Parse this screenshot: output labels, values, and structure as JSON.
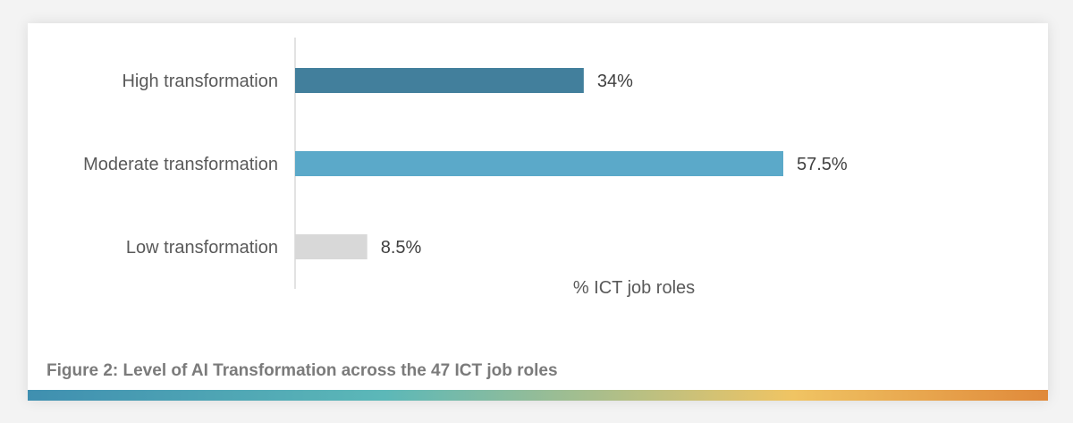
{
  "chart_data": {
    "type": "bar",
    "orientation": "horizontal",
    "categories": [
      "High transformation",
      "Moderate transformation",
      "Low transformation"
    ],
    "values": [
      34,
      57.5,
      8.5
    ],
    "value_labels": [
      "34%",
      "57.5%",
      "8.5%"
    ],
    "colors": [
      "#427f9c",
      "#5ba9c9",
      "#d8d8d8"
    ],
    "xlabel": "% ICT job roles",
    "ylabel": "",
    "xlim": [
      0,
      70
    ],
    "grid": false,
    "legend": "none"
  },
  "caption": "Figure 2: Level of AI Transformation across the 47 ICT job roles",
  "gradient_colors": [
    "#3f8fb0",
    "#5cb8b8",
    "#f0c463",
    "#e0893a"
  ]
}
